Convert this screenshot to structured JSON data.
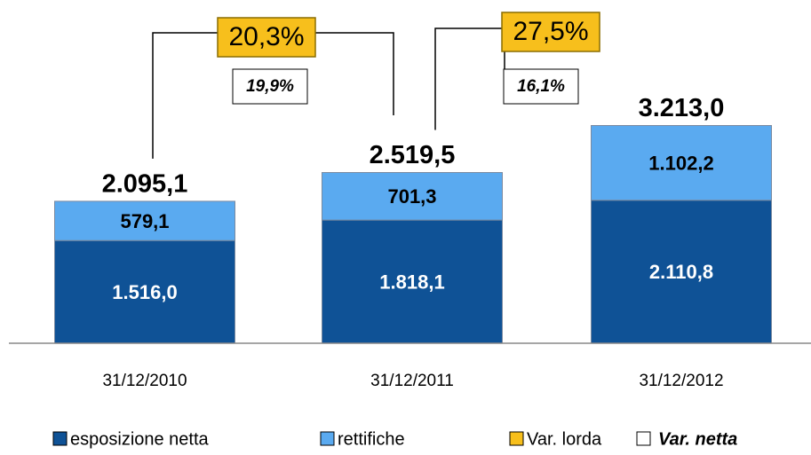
{
  "chart_data": {
    "type": "stacked_bar",
    "categories": [
      "31/12/2010",
      "31/12/2011",
      "31/12/2012"
    ],
    "series": [
      {
        "name": "esposizione netta",
        "color": "#0f5296",
        "values": [
          1516.0,
          1818.1,
          2110.8
        ],
        "value_labels": [
          "1.516,0",
          "1.818,1",
          "2.110,8"
        ]
      },
      {
        "name": "rettifiche",
        "color": "#5aaaf0",
        "values": [
          579.1,
          701.3,
          1102.2
        ],
        "value_labels": [
          "579,1",
          "701,3",
          "1.102,2"
        ]
      }
    ],
    "totals": {
      "values": [
        2095.1,
        2519.5,
        3213.0
      ],
      "value_labels": [
        "2.095,1",
        "2.519,5",
        "3.213,0"
      ]
    },
    "changes": [
      {
        "name": "Var. lorda",
        "color": "#f7bf1c",
        "values": [
          20.3,
          27.5
        ],
        "value_labels": [
          "20,3%",
          "27,5%"
        ]
      },
      {
        "name": "Var. netta",
        "color": "#ffffff",
        "values": [
          19.9,
          16.1
        ],
        "value_labels": [
          "19,9%",
          "16,1%"
        ]
      }
    ],
    "ylim": [
      0,
      5000
    ]
  }
}
